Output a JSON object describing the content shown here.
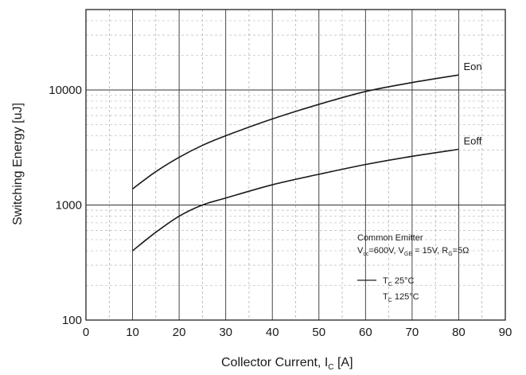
{
  "chart_data": {
    "type": "line",
    "xlabel": "Collector Current, I",
    "xlabel_sub": "C",
    "xlabel_unit": "[A]",
    "ylabel": "Switching Energy [uJ]",
    "xlim": [
      0,
      90
    ],
    "ylim": [
      100,
      50000
    ],
    "yscale": "log",
    "grid": true,
    "x_ticks": [
      "0",
      "10",
      "20",
      "30",
      "40",
      "50",
      "60",
      "70",
      "80",
      "90"
    ],
    "y_ticks": [
      {
        "value": 100,
        "label": "100"
      },
      {
        "value": 1000,
        "label": "1000"
      },
      {
        "value": 10000,
        "label": "10000"
      }
    ],
    "series": [
      {
        "name": "Eon",
        "x": [
          10,
          15,
          20,
          25,
          30,
          40,
          50,
          60,
          70,
          80
        ],
        "y": [
          1380,
          1950,
          2600,
          3300,
          4000,
          5600,
          7500,
          9700,
          11600,
          13500
        ]
      },
      {
        "name": "Eoff",
        "x": [
          10,
          15,
          20,
          25,
          30,
          40,
          50,
          60,
          70,
          80
        ],
        "y": [
          400,
          580,
          800,
          1000,
          1150,
          1500,
          1850,
          2250,
          2650,
          3050
        ]
      }
    ],
    "annotation": {
      "title": "Common Emitter",
      "line2": {
        "p1": "V",
        "p1_sub": "cc",
        "p1_val": "=600V, V",
        "p2_sub": "GE",
        "p2_val": " = 15V, R",
        "p3_sub": "G",
        "p3_val": "=5Ω"
      },
      "legend": [
        {
          "prefix": "T",
          "sub": "C",
          "text": " 25°C",
          "style": "solid"
        },
        {
          "prefix": "T",
          "sub": "C",
          "text": " 125°C",
          "style": "none"
        }
      ]
    },
    "legend_placement": "bottom-right"
  }
}
